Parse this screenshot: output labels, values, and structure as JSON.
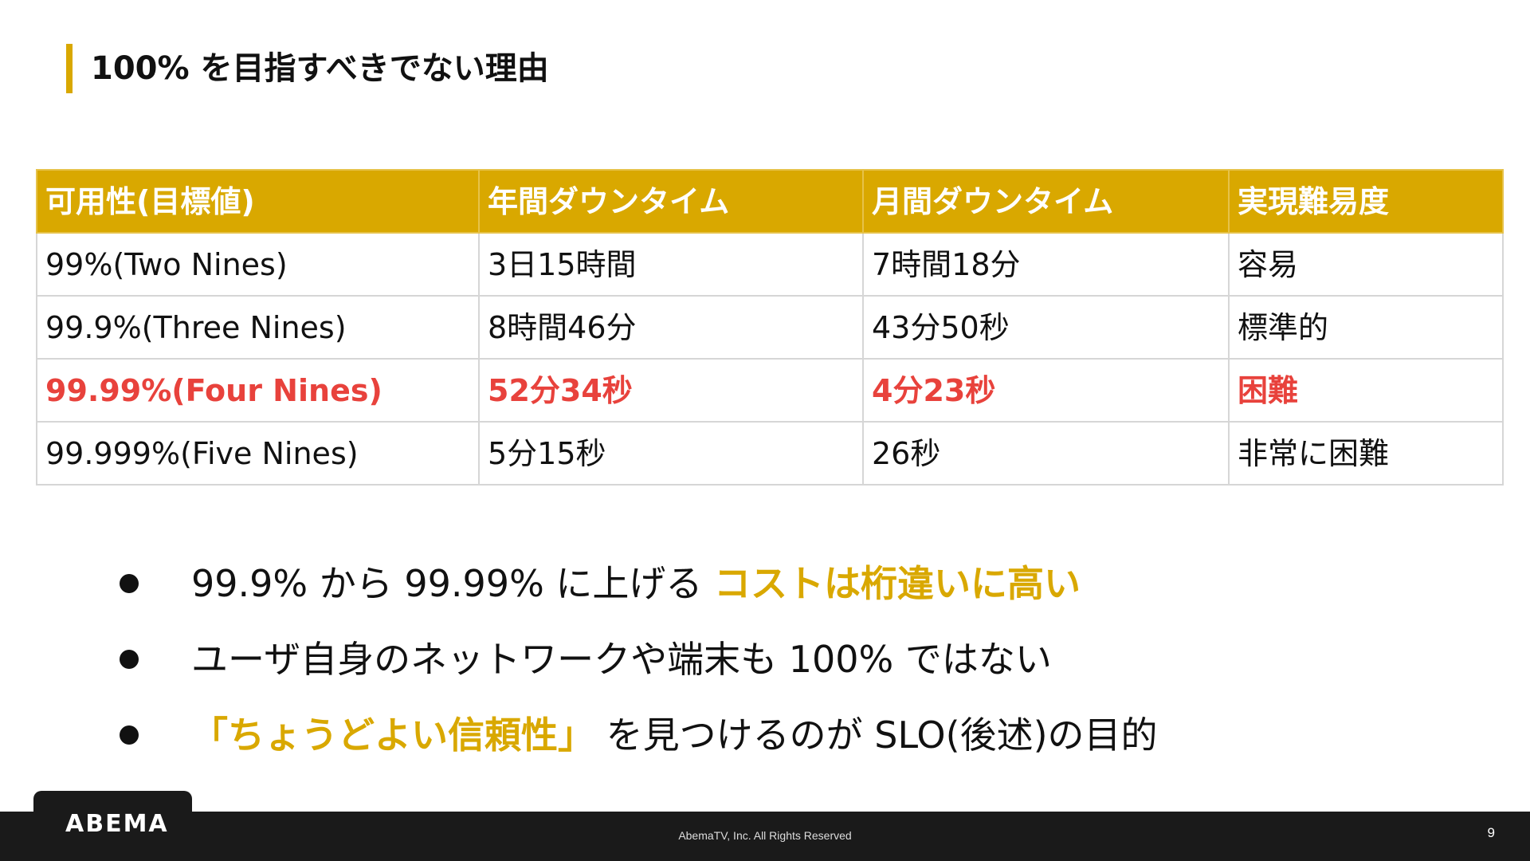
{
  "slide": {
    "title": "100% を目指すべきでない理由",
    "table": {
      "headers": [
        "可用性(目標値)",
        "年間ダウンタイム",
        "月間ダウンタイム",
        "実現難易度"
      ],
      "rows": [
        [
          "99%(Two Nines)",
          "3日15時間",
          "7時間18分",
          "容易"
        ],
        [
          "99.9%(Three Nines)",
          "8時間46分",
          "43分50秒",
          "標準的"
        ],
        [
          "99.99%(Four Nines)",
          "52分34秒",
          "4分23秒",
          "困難"
        ],
        [
          "99.999%(Five Nines)",
          "5分15秒",
          "26秒",
          "非常に困難"
        ]
      ],
      "highlight_row": 2,
      "header_color": "#d9a800",
      "highlight_color": "#e8423c"
    },
    "bullets": [
      {
        "text": "99.9% から 99.99% に上げる ",
        "accent": "コストは桁違いに高い"
      },
      {
        "text": "ユーザ自身のネットワークや端末も 100% ではない"
      },
      {
        "accent": "「ちょうどよい信頼性」",
        "text": " を見つけるのが SLO(後述)の目的"
      }
    ],
    "accent_color": "#d9a800"
  },
  "footer": {
    "logo": "ABEMA",
    "copyright": "AbemaTV, Inc. All Rights Reserved",
    "page_number": "9"
  }
}
